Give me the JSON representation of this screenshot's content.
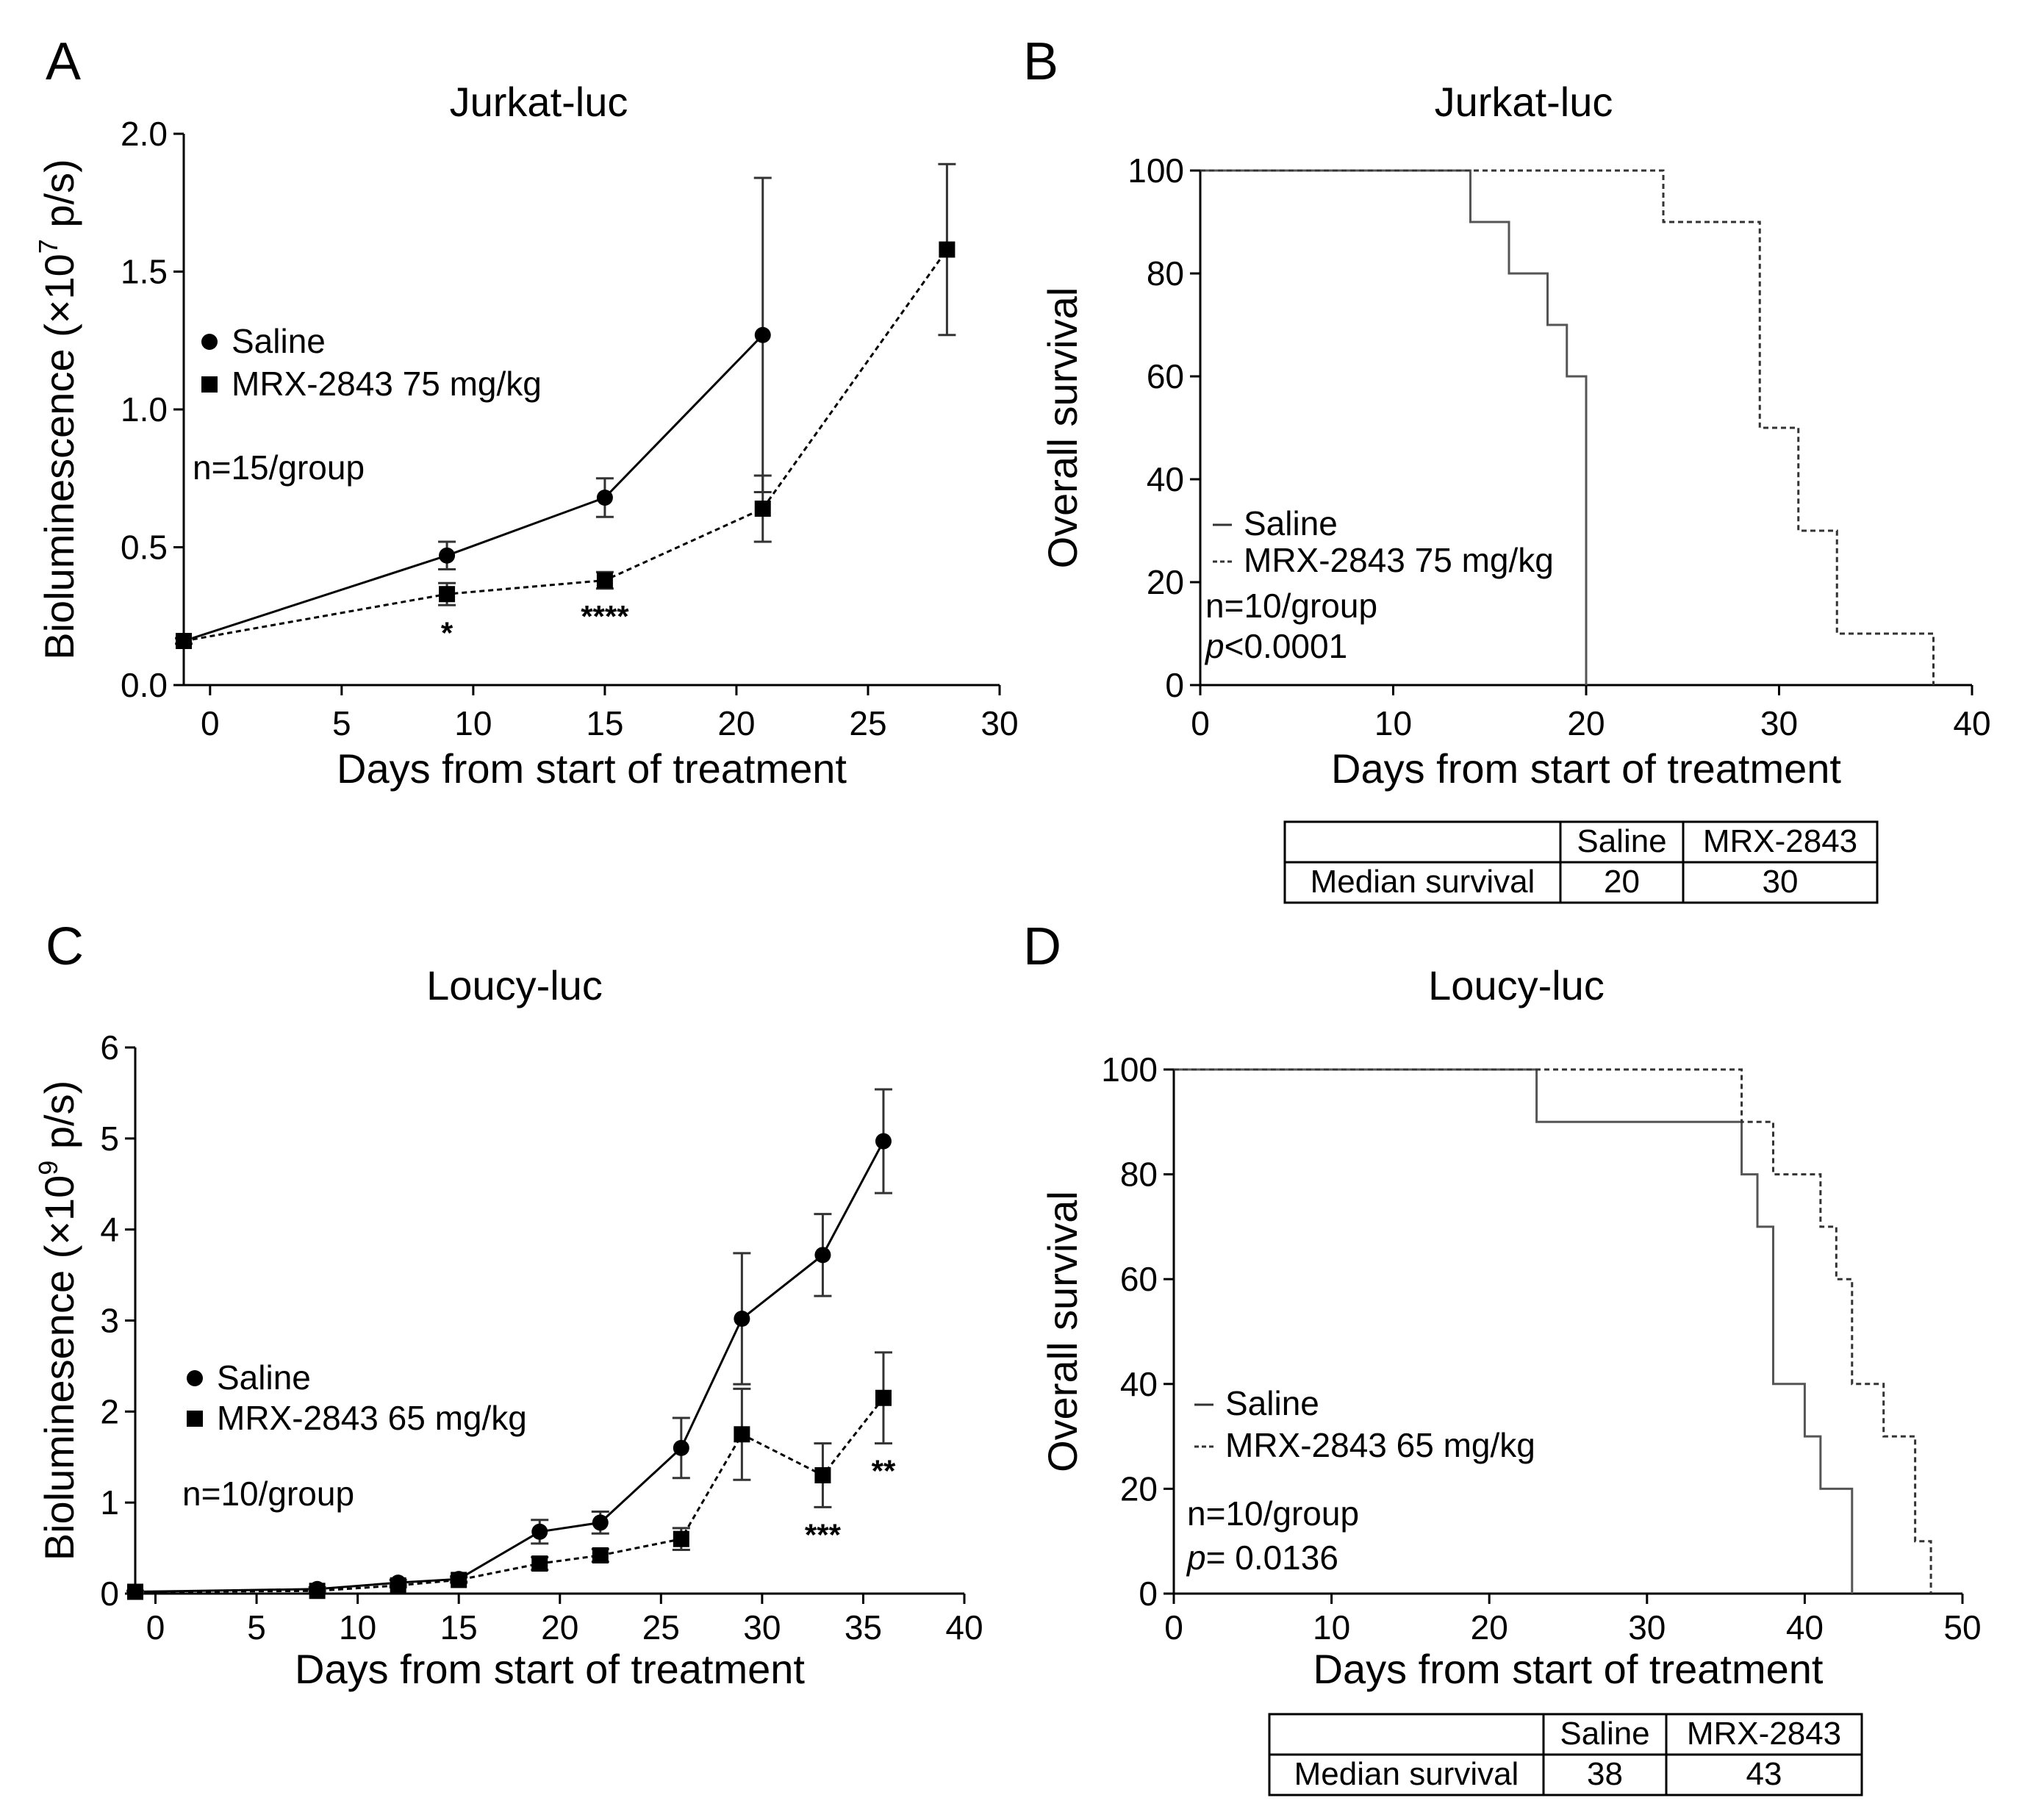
{
  "chart_data": [
    {
      "panel": "A",
      "type": "line",
      "title": "Jurkat-luc",
      "xlabel": "Days from start of treatment",
      "ylabel_prefix": "Bioluminescence (×10",
      "ylabel_exp": "7",
      "ylabel_suffix": " p/s)",
      "xlim": [
        -1,
        30
      ],
      "ylim": [
        0,
        2.0
      ],
      "xticks": [
        0,
        5,
        10,
        15,
        20,
        25,
        30
      ],
      "yticks": [
        0.0,
        0.5,
        1.0,
        1.5,
        2.0
      ],
      "ytick_labels": [
        "0.0",
        "0.5",
        "1.0",
        "1.5",
        "2.0"
      ],
      "legend": [
        "Saline",
        "MRX-2843 75 mg/kg"
      ],
      "note": "n=15/group",
      "series": [
        {
          "name": "Saline",
          "marker": "circle",
          "style": "solid",
          "x": [
            -1,
            9,
            15,
            21
          ],
          "y": [
            0.16,
            0.47,
            0.68,
            1.27
          ],
          "err": [
            0.01,
            0.05,
            0.07,
            0.57
          ]
        },
        {
          "name": "MRX-2843 75 mg/kg",
          "marker": "square",
          "style": "dashed",
          "x": [
            -1,
            9,
            15,
            21,
            28
          ],
          "y": [
            0.16,
            0.33,
            0.38,
            0.64,
            1.58
          ],
          "err": [
            0.01,
            0.04,
            0.03,
            0.12,
            0.31
          ]
        }
      ],
      "significance": [
        {
          "x": 9,
          "label": "*"
        },
        {
          "x": 15,
          "label": "****"
        }
      ]
    },
    {
      "panel": "B",
      "type": "line",
      "title": "Jurkat-luc",
      "xlabel": "Days from start of treatment",
      "ylabel": "Overall survival",
      "xlim": [
        0,
        40
      ],
      "ylim": [
        0,
        100
      ],
      "xticks": [
        0,
        10,
        20,
        30,
        40
      ],
      "yticks": [
        0,
        20,
        40,
        60,
        80,
        100
      ],
      "legend": [
        "Saline",
        "MRX-2843 75 mg/kg"
      ],
      "note": "n=10/group",
      "p_label": "p",
      "p_value": "<0.0001",
      "series": [
        {
          "name": "Saline",
          "style": "solid",
          "x": [
            0,
            14,
            16,
            18,
            19,
            20
          ],
          "y": [
            100,
            90,
            80,
            70,
            60,
            0
          ]
        },
        {
          "name": "MRX-2843 75 mg/kg",
          "style": "dashed",
          "x": [
            0,
            24,
            29,
            31,
            33,
            38
          ],
          "y": [
            100,
            90,
            50,
            30,
            10,
            0
          ]
        }
      ],
      "table": {
        "header": [
          "",
          "Saline",
          "MRX-2843"
        ],
        "row_label": "Median survival",
        "values": [
          "20",
          "30"
        ]
      }
    },
    {
      "panel": "C",
      "type": "line",
      "title": "Loucy-luc",
      "xlabel": "Days from start of treatment",
      "ylabel_prefix": "Bioluminesence (×10",
      "ylabel_exp": "9",
      "ylabel_suffix": " p/s)",
      "xlim": [
        -1,
        40
      ],
      "ylim": [
        0,
        6
      ],
      "xticks": [
        0,
        5,
        10,
        15,
        20,
        25,
        30,
        35,
        40
      ],
      "yticks": [
        0,
        1,
        2,
        3,
        4,
        5,
        6
      ],
      "ytick_labels": [
        "0",
        "1",
        "2",
        "3",
        "4",
        "5",
        "6"
      ],
      "legend": [
        "Saline",
        "MRX-2843 65 mg/kg"
      ],
      "note": "n=10/group",
      "series": [
        {
          "name": "Saline",
          "marker": "circle",
          "style": "solid",
          "x": [
            -1,
            8,
            12,
            15,
            19,
            22,
            26,
            29,
            33,
            36
          ],
          "y": [
            0.02,
            0.05,
            0.12,
            0.16,
            0.68,
            0.78,
            1.6,
            3.02,
            3.72,
            4.97
          ],
          "err": [
            0.01,
            0.02,
            0.03,
            0.03,
            0.13,
            0.12,
            0.33,
            0.72,
            0.45,
            0.57
          ]
        },
        {
          "name": "MRX-2843 65 mg/kg",
          "marker": "square",
          "style": "dashed",
          "x": [
            -1,
            8,
            12,
            15,
            19,
            22,
            26,
            29,
            33,
            36
          ],
          "y": [
            0.02,
            0.03,
            0.09,
            0.15,
            0.33,
            0.42,
            0.6,
            1.75,
            1.3,
            2.15
          ],
          "err": [
            0.01,
            0.01,
            0.02,
            0.03,
            0.07,
            0.07,
            0.12,
            0.5,
            0.35,
            0.5
          ]
        }
      ],
      "significance": [
        {
          "x": 33,
          "label": "***"
        },
        {
          "x": 36,
          "label": "**"
        }
      ]
    },
    {
      "panel": "D",
      "type": "line",
      "title": "Loucy-luc",
      "xlabel": "Days from start of treatment",
      "ylabel": "Overall survival",
      "xlim": [
        0,
        50
      ],
      "ylim": [
        0,
        100
      ],
      "xticks": [
        0,
        10,
        20,
        30,
        40,
        50
      ],
      "yticks": [
        0,
        20,
        40,
        60,
        80,
        100
      ],
      "legend": [
        "Saline",
        "MRX-2843 65 mg/kg"
      ],
      "note": "n=10/group",
      "p_label": "p",
      "p_value": "= 0.0136",
      "series": [
        {
          "name": "Saline",
          "style": "solid",
          "x": [
            0,
            23,
            36,
            37,
            38,
            40,
            41,
            43
          ],
          "y": [
            100,
            90,
            80,
            70,
            40,
            30,
            20,
            0
          ]
        },
        {
          "name": "MRX-2843 65 mg/kg",
          "style": "dashed",
          "x": [
            0,
            36,
            38,
            41,
            42,
            43,
            45,
            47,
            48
          ],
          "y": [
            100,
            90,
            80,
            70,
            60,
            40,
            30,
            10,
            0
          ]
        }
      ],
      "table": {
        "header": [
          "",
          "Saline",
          "MRX-2843"
        ],
        "row_label": "Median survival",
        "values": [
          "38",
          "43"
        ]
      }
    }
  ]
}
